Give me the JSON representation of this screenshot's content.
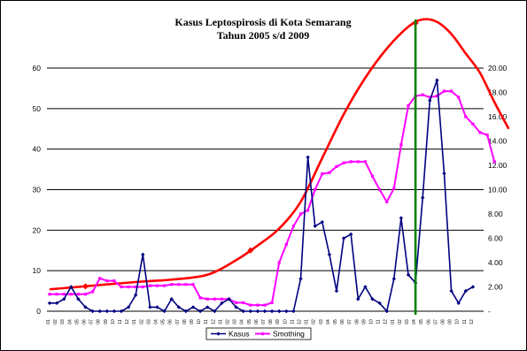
{
  "chart_data": {
    "type": "line",
    "title": "Kasus Leptospirosis di Kota Semarang",
    "subtitle": "Tahun 2005 s/d 2009",
    "xlabel": "",
    "ylabel": "",
    "y_left": {
      "ticks": [
        "0",
        "10",
        "20",
        "30",
        "40",
        "50",
        "60"
      ],
      "range": [
        0,
        60
      ]
    },
    "y_right": {
      "ticks": [
        "-",
        "2.00",
        "4.00",
        "6.00",
        "8.00",
        "10.00",
        "12.00",
        "14.00",
        "16.00",
        "18.00",
        "20.00"
      ],
      "range": [
        0,
        20
      ]
    },
    "x_tick_labels": [
      "01",
      "02",
      "03",
      "04",
      "05",
      "06",
      "07",
      "08",
      "09",
      "10",
      "11",
      "12",
      "01",
      "02",
      "03",
      "04",
      "05",
      "06",
      "07",
      "08",
      "09",
      "10",
      "11",
      "12",
      "01",
      "02",
      "03",
      "04",
      "05",
      "06",
      "07",
      "08",
      "09",
      "10",
      "11",
      "12",
      "01",
      "02",
      "03",
      "04",
      "05",
      "06",
      "07",
      "08",
      "09",
      "10",
      "11",
      "12",
      "01",
      "02",
      "03",
      "04",
      "05",
      "06",
      "07",
      "08",
      "09",
      "10",
      "11",
      "12"
    ],
    "grid": "horizontal",
    "legend_position": "bottom",
    "series": [
      {
        "name": "Kasus",
        "color": "#000080",
        "marker": "diamond",
        "axis": "left",
        "values": [
          2,
          2,
          3,
          6,
          3,
          1,
          0,
          0,
          0,
          0,
          0,
          1,
          4,
          14,
          1,
          1,
          0,
          3,
          1,
          0,
          1,
          0,
          1,
          0,
          2,
          3,
          1,
          0,
          0,
          0,
          0,
          0,
          0,
          0,
          0,
          8,
          38,
          21,
          22,
          14,
          5,
          18,
          19,
          3,
          6,
          3,
          2,
          0,
          8,
          23,
          9,
          7,
          28,
          52,
          57,
          34,
          5,
          2,
          5,
          6
        ]
      },
      {
        "name": "Smothing",
        "color": "#ff00ff",
        "marker": "square",
        "axis": "right",
        "values": [
          1.4,
          1.4,
          1.4,
          1.4,
          1.4,
          1.4,
          1.6,
          2.7,
          2.5,
          2.5,
          2.0,
          2.0,
          2.0,
          2.0,
          2.1,
          2.1,
          2.1,
          2.2,
          2.2,
          2.2,
          2.2,
          1.1,
          1.0,
          1.0,
          1.0,
          1.0,
          0.7,
          0.7,
          0.5,
          0.5,
          0.5,
          0.7,
          4.0,
          5.5,
          7.0,
          8.0,
          8.3,
          10.0,
          11.3,
          11.4,
          11.9,
          12.2,
          12.3,
          12.3,
          12.3,
          11.1,
          10.0,
          9.0,
          10.1,
          13.7,
          16.9,
          17.7,
          17.8,
          17.6,
          17.7,
          18.1,
          18.1,
          17.6,
          16.0,
          15.4,
          14.7,
          14.5,
          12.3
        ]
      },
      {
        "name": "",
        "color": "#ff0000",
        "marker": "none",
        "axis": "right",
        "curve": "trend",
        "values_by_x": [
          [
            0,
            1.8
          ],
          [
            12,
            2.4
          ],
          [
            17,
            2.6
          ],
          [
            22,
            3.0
          ],
          [
            26,
            4.2
          ],
          [
            29,
            5.4
          ],
          [
            32,
            6.8
          ],
          [
            35,
            9.0
          ],
          [
            38,
            12.6
          ],
          [
            41,
            16.2
          ],
          [
            44,
            19.2
          ],
          [
            47,
            21.6
          ],
          [
            50,
            23.4
          ],
          [
            52,
            24.0
          ],
          [
            54,
            23.8
          ],
          [
            56,
            22.8
          ],
          [
            58,
            21.2
          ],
          [
            60,
            19.6
          ],
          [
            62,
            17.2
          ],
          [
            64,
            15.0
          ]
        ]
      }
    ],
    "vertical_marker": {
      "color": "#008000",
      "x_index": 51
    },
    "colors": {
      "background": "#ffffff",
      "grid": "#000000"
    }
  }
}
